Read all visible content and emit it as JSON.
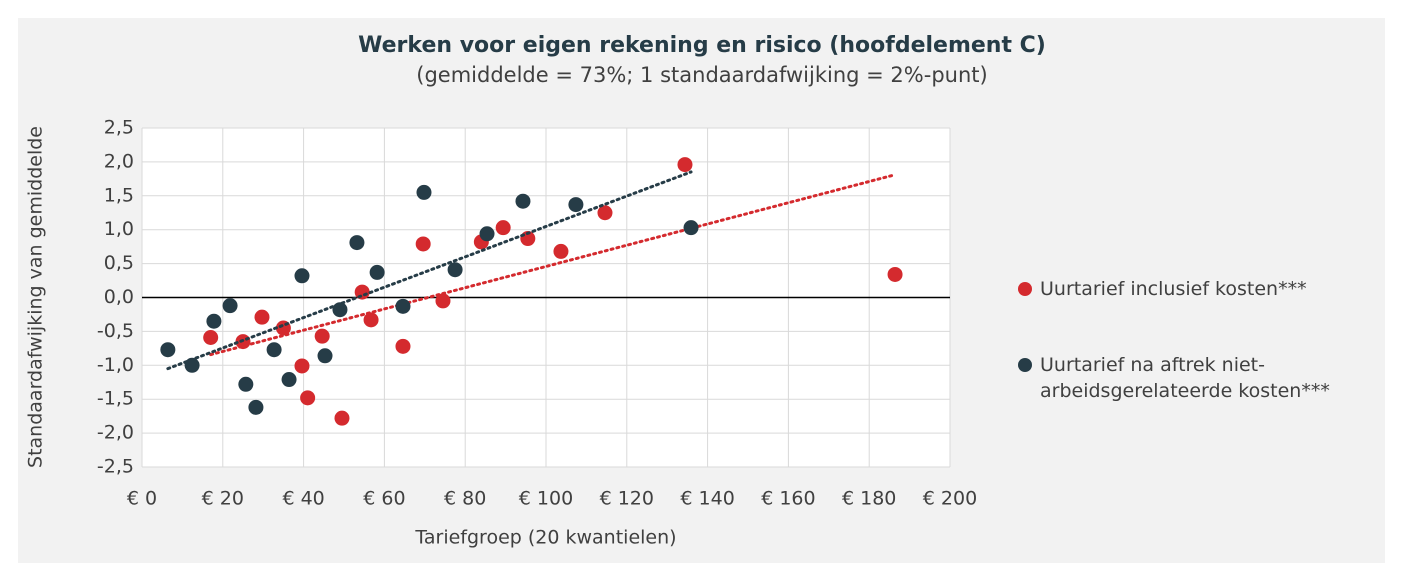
{
  "chart_data": {
    "type": "scatter",
    "title": "Werken voor eigen rekening en risico (hoofdelement C)",
    "subtitle": "(gemiddelde = 73%; 1 standaardafwijking = 2%-punt)",
    "x_label": "Tariefgroep (20 kwantielen)",
    "y_label": "Standaardafwijking van gemiddelde",
    "xlim": [
      0,
      200
    ],
    "ylim": [
      -2.5,
      2.5
    ],
    "xticks": [
      {
        "value": 0,
        "label": "€ 0"
      },
      {
        "value": 20,
        "label": "€ 20"
      },
      {
        "value": 40,
        "label": "€ 40"
      },
      {
        "value": 60,
        "label": "€ 60"
      },
      {
        "value": 80,
        "label": "€ 80"
      },
      {
        "value": 100,
        "label": "€ 100"
      },
      {
        "value": 120,
        "label": "€ 120"
      },
      {
        "value": 140,
        "label": "€ 140"
      },
      {
        "value": 160,
        "label": "€ 160"
      },
      {
        "value": 180,
        "label": "€ 180"
      },
      {
        "value": 200,
        "label": "€ 200"
      }
    ],
    "yticks": [
      {
        "value": 2.5,
        "label": "2,5"
      },
      {
        "value": 2.0,
        "label": "2,0"
      },
      {
        "value": 1.5,
        "label": "1,5"
      },
      {
        "value": 1.0,
        "label": "1,0"
      },
      {
        "value": 0.5,
        "label": "0,5"
      },
      {
        "value": 0,
        "label": "0,0"
      },
      {
        "value": -0.5,
        "label": "-0,5"
      },
      {
        "value": -1.0,
        "label": "-1,0"
      },
      {
        "value": -1.5,
        "label": "-1,5"
      },
      {
        "value": -2.0,
        "label": "-2,0"
      },
      {
        "value": -2.5,
        "label": "-2,5"
      }
    ],
    "grid": true,
    "trendline": true,
    "legend": "right",
    "series": [
      {
        "name": "Uurtarief inclusief kosten***",
        "color": "#d42a2e",
        "x": [
          17,
          25,
          29.7,
          35,
          39.6,
          41,
          44.6,
          49.5,
          54.5,
          56.7,
          64.6,
          69.6,
          74.5,
          84,
          89.4,
          95.5,
          103.7,
          114.6,
          134.4,
          186.4
        ],
        "values": [
          -0.59,
          -0.65,
          -0.29,
          -0.45,
          -1.01,
          -1.48,
          -0.57,
          -1.78,
          0.08,
          -0.33,
          -0.72,
          0.79,
          -0.05,
          0.82,
          1.03,
          0.87,
          0.68,
          1.25,
          1.96,
          0.34
        ]
      },
      {
        "name": "Uurtarief na aftrek niet-arbeidsgerelateerde kosten***",
        "color": "#263c47",
        "x": [
          6.4,
          12.4,
          17.8,
          21.8,
          25.7,
          28.2,
          32.7,
          36.4,
          39.6,
          45.3,
          49,
          53.2,
          58.2,
          64.6,
          69.8,
          77.5,
          85.4,
          94.3,
          107.4,
          135.9
        ],
        "values": [
          -0.77,
          -1.0,
          -0.35,
          -0.12,
          -1.28,
          -1.62,
          -0.77,
          -1.21,
          0.32,
          -0.86,
          -0.18,
          0.81,
          0.37,
          -0.13,
          1.55,
          0.41,
          0.94,
          1.42,
          1.37,
          1.03
        ]
      }
    ]
  }
}
